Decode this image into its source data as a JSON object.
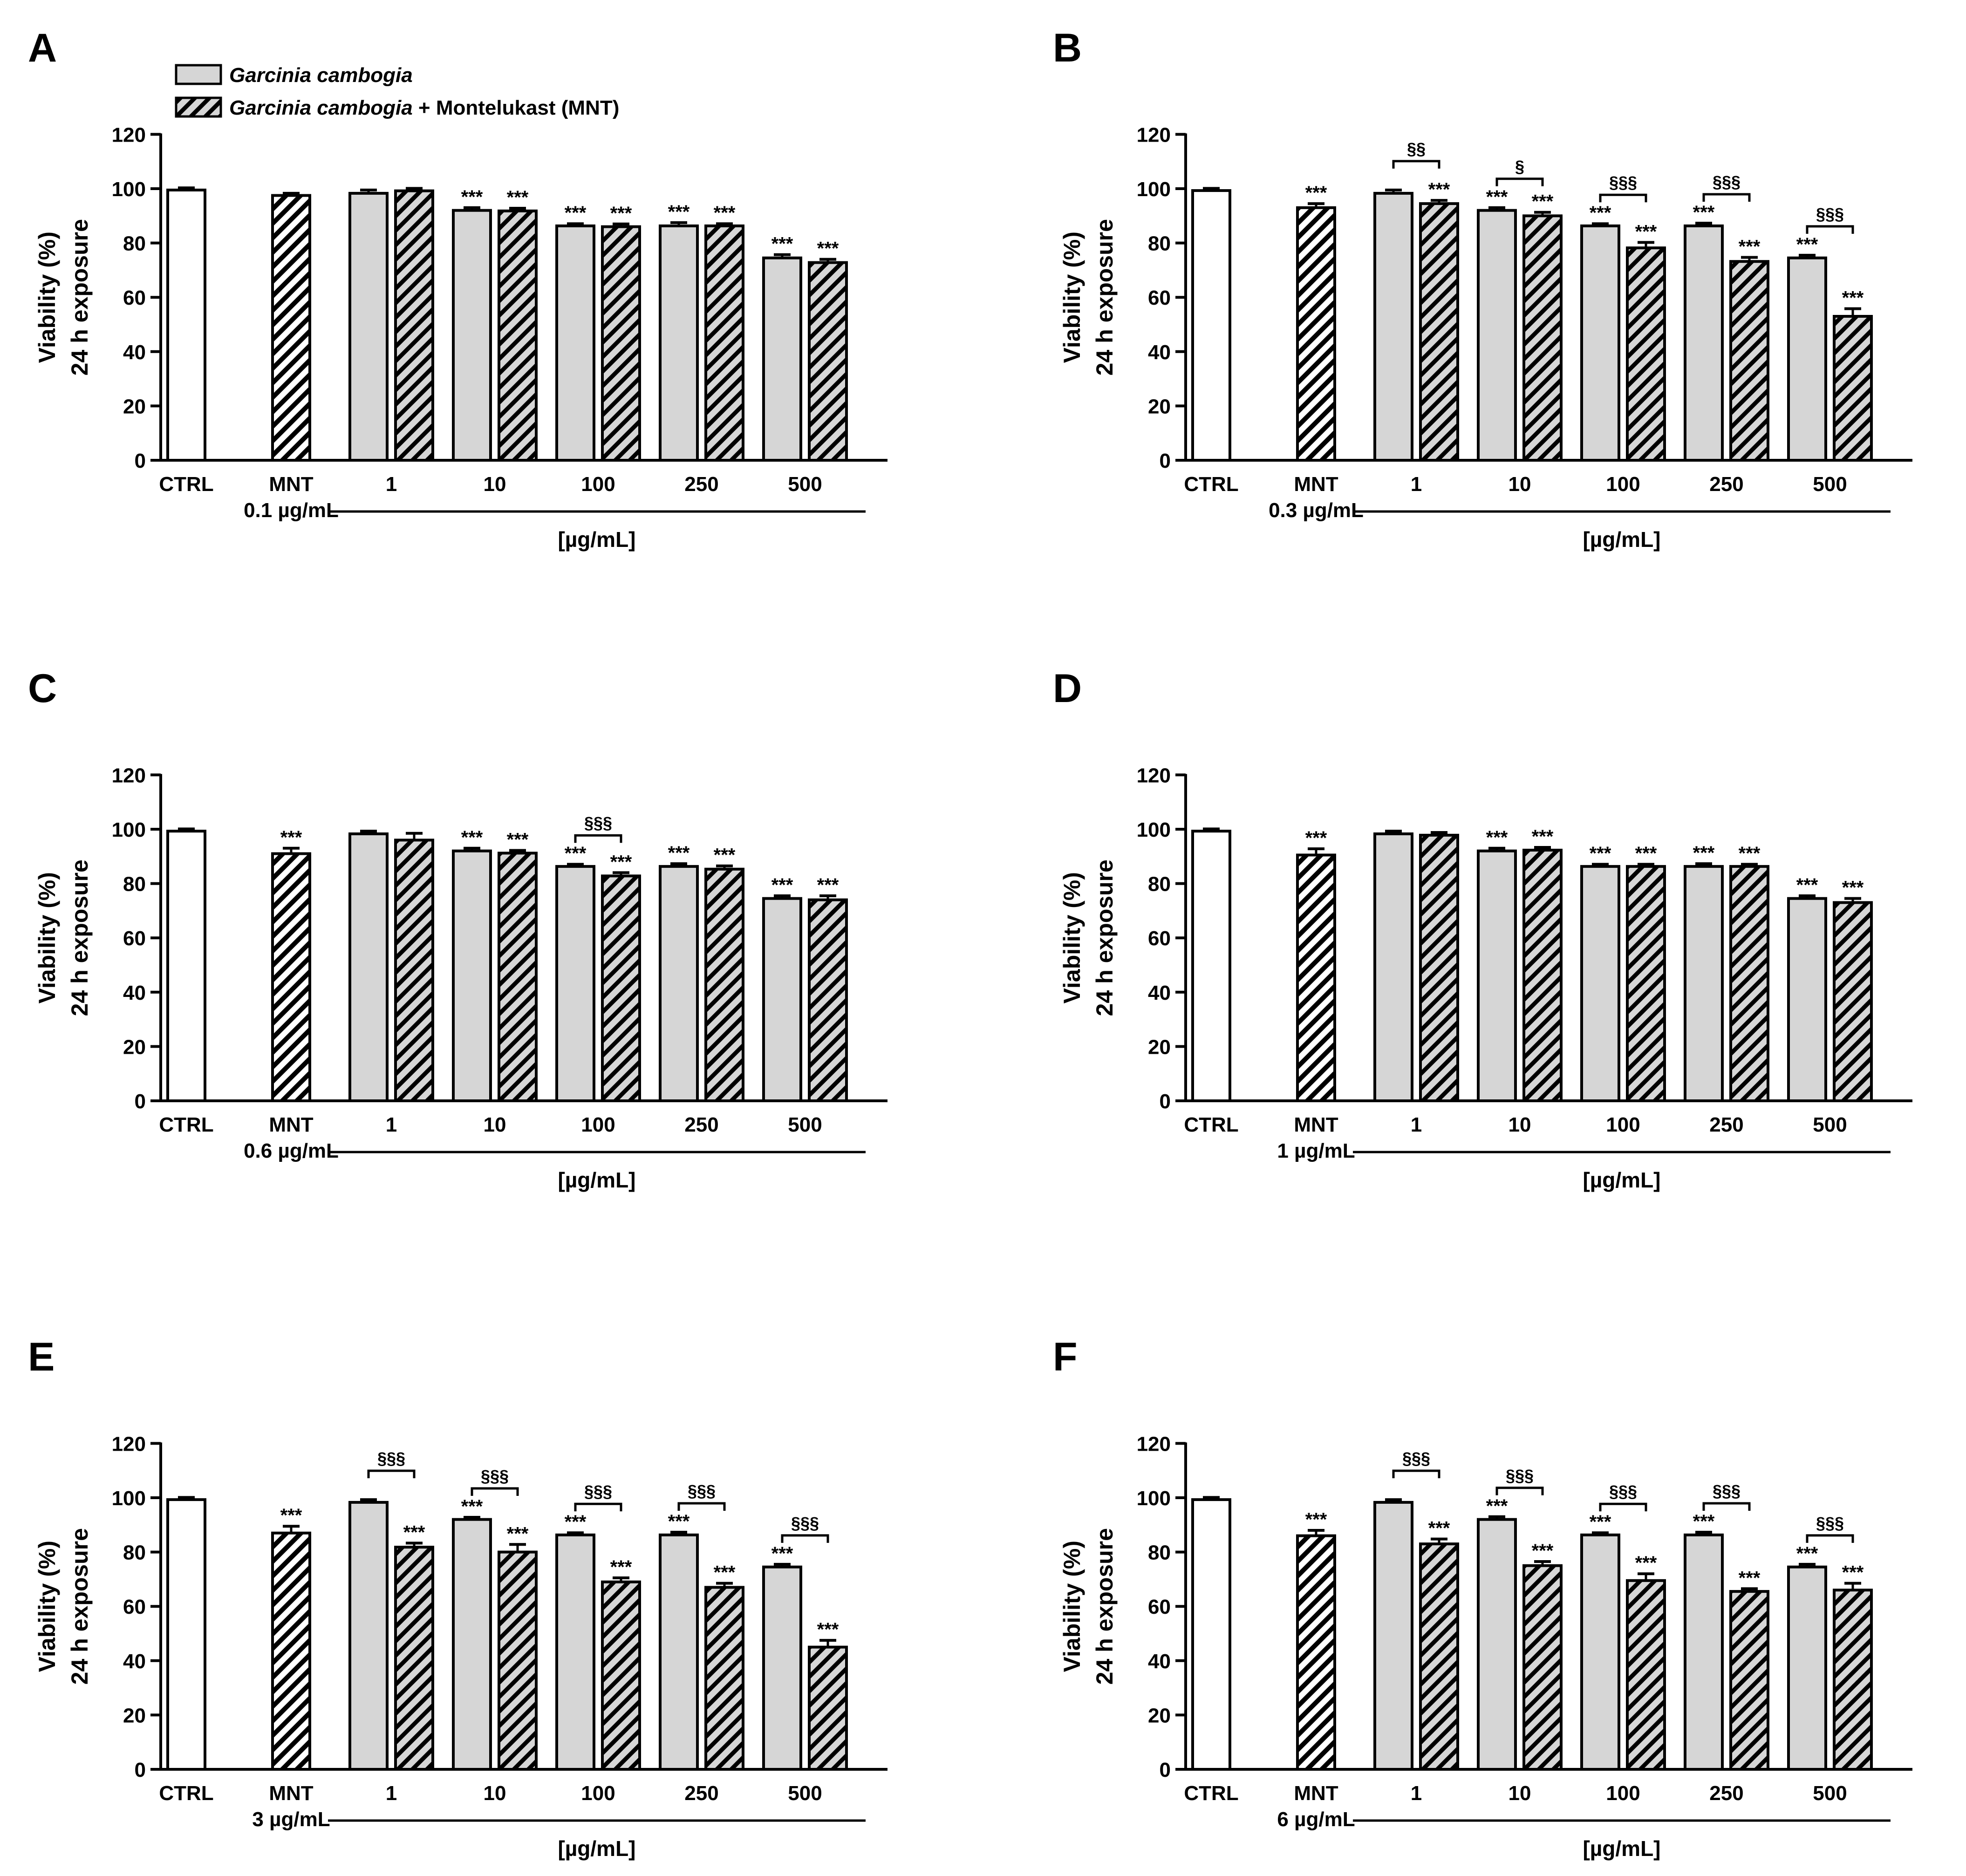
{
  "legend": {
    "item_gc": {
      "italic": "Garcinia cambogia",
      "plain": ""
    },
    "item_gcm": {
      "italic": "Garcinia cambogia",
      "plain": " + Montelukast (MNT)"
    }
  },
  "colors": {
    "gc_fill": "#d6d6d6",
    "ctrl_fill": "#ffffff",
    "stroke": "#000000",
    "hatch_bg": "#ffffff",
    "hatch_gc_bg": "#d6d6d6"
  },
  "chart_data": [
    {
      "type": "bar",
      "panel": "A",
      "ylabel": [
        "Viability (%)",
        "24 h exposure"
      ],
      "ylim": [
        0,
        120
      ],
      "yticks": [
        0,
        20,
        40,
        60,
        80,
        100,
        120
      ],
      "ctrl": {
        "label": "CTRL",
        "value": 99.5,
        "err": 0.8
      },
      "mnt": {
        "label": "MNT",
        "dose": "0.1 µg/mL",
        "value": 97.5,
        "err": 0.8,
        "star": ""
      },
      "group_label": "[µg/mL]",
      "categories": [
        "1",
        "10",
        "100",
        "250",
        "500"
      ],
      "series": [
        {
          "name": "Garcinia cambogia",
          "values": [
            98.3,
            92.0,
            86.3,
            86.3,
            74.5
          ],
          "err": [
            1.2,
            1.0,
            0.8,
            1.2,
            1.2
          ],
          "stars": [
            "",
            "***",
            "***",
            "***",
            "***"
          ]
        },
        {
          "name": "Garcinia cambogia + Montelukast (MNT)",
          "values": [
            99.2,
            91.8,
            86.0,
            86.3,
            72.8
          ],
          "err": [
            0.9,
            1.0,
            1.0,
            0.8,
            1.2
          ],
          "stars": [
            "",
            "***",
            "***",
            "***",
            "***"
          ]
        }
      ],
      "brackets": [
        "",
        "",
        "",
        "",
        ""
      ]
    },
    {
      "type": "bar",
      "panel": "B",
      "ylabel": [
        "Viability (%)",
        "24 h exposure"
      ],
      "ylim": [
        0,
        120
      ],
      "yticks": [
        0,
        20,
        40,
        60,
        80,
        100,
        120
      ],
      "ctrl": {
        "label": "CTRL",
        "value": 99.3,
        "err": 0.8
      },
      "mnt": {
        "label": "MNT",
        "dose": "0.3 µg/mL",
        "value": 93.0,
        "err": 1.5,
        "star": "***"
      },
      "group_label": "[µg/mL]",
      "categories": [
        "1",
        "10",
        "100",
        "250",
        "500"
      ],
      "series": [
        {
          "name": "Garcinia cambogia",
          "values": [
            98.3,
            92.0,
            86.3,
            86.3,
            74.5
          ],
          "err": [
            1.2,
            1.0,
            0.8,
            1.0,
            1.0
          ],
          "stars": [
            "",
            "***",
            "***",
            "***",
            "***"
          ]
        },
        {
          "name": "Garcinia cambogia + Montelukast (MNT)",
          "values": [
            94.5,
            90.0,
            78.2,
            73.2,
            53.0
          ],
          "err": [
            1.2,
            1.3,
            2.0,
            1.5,
            2.8
          ],
          "stars": [
            "***",
            "***",
            "***",
            "***",
            "***"
          ]
        }
      ],
      "brackets": [
        "§§",
        "§",
        "§§§",
        "§§§",
        "§§§"
      ]
    },
    {
      "type": "bar",
      "panel": "C",
      "ylabel": [
        "Viability (%)",
        "24 h exposure"
      ],
      "ylim": [
        0,
        120
      ],
      "yticks": [
        0,
        20,
        40,
        60,
        80,
        100,
        120
      ],
      "ctrl": {
        "label": "CTRL",
        "value": 99.3,
        "err": 0.8
      },
      "mnt": {
        "label": "MNT",
        "dose": "0.6 µg/mL",
        "value": 91.0,
        "err": 2.0,
        "star": "***"
      },
      "group_label": "[µg/mL]",
      "categories": [
        "1",
        "10",
        "100",
        "250",
        "500"
      ],
      "series": [
        {
          "name": "Garcinia cambogia",
          "values": [
            98.3,
            92.0,
            86.3,
            86.3,
            74.5
          ],
          "err": [
            1.0,
            1.0,
            0.8,
            1.0,
            1.0
          ],
          "stars": [
            "",
            "***",
            "***",
            "***",
            "***"
          ]
        },
        {
          "name": "Garcinia cambogia + Montelukast (MNT)",
          "values": [
            96.0,
            91.2,
            82.8,
            85.3,
            74.0
          ],
          "err": [
            2.5,
            1.0,
            1.2,
            1.2,
            1.5
          ],
          "stars": [
            "",
            "***",
            "***",
            "***",
            "***"
          ]
        }
      ],
      "brackets": [
        "",
        "",
        "§§§",
        "",
        ""
      ]
    },
    {
      "type": "bar",
      "panel": "D",
      "ylabel": [
        "Viability (%)",
        "24 h exposure"
      ],
      "ylim": [
        0,
        120
      ],
      "yticks": [
        0,
        20,
        40,
        60,
        80,
        100,
        120
      ],
      "ctrl": {
        "label": "CTRL",
        "value": 99.3,
        "err": 0.8
      },
      "mnt": {
        "label": "MNT",
        "dose": "1 µg/mL",
        "value": 90.5,
        "err": 2.3,
        "star": "***"
      },
      "group_label": "[µg/mL]",
      "categories": [
        "1",
        "10",
        "100",
        "250",
        "500"
      ],
      "series": [
        {
          "name": "Garcinia cambogia",
          "values": [
            98.3,
            92.0,
            86.3,
            86.3,
            74.5
          ],
          "err": [
            1.0,
            1.0,
            0.8,
            1.0,
            1.0
          ],
          "stars": [
            "",
            "***",
            "***",
            "***",
            "***"
          ]
        },
        {
          "name": "Garcinia cambogia + Montelukast (MNT)",
          "values": [
            97.8,
            92.3,
            86.3,
            86.3,
            73.0
          ],
          "err": [
            1.0,
            1.0,
            0.8,
            0.8,
            1.5
          ],
          "stars": [
            "",
            "***",
            "***",
            "***",
            "***"
          ]
        }
      ],
      "brackets": [
        "",
        "",
        "",
        "",
        ""
      ]
    },
    {
      "type": "bar",
      "panel": "E",
      "ylabel": [
        "Viability (%)",
        "24 h exposure"
      ],
      "ylim": [
        0,
        120
      ],
      "yticks": [
        0,
        20,
        40,
        60,
        80,
        100,
        120
      ],
      "ctrl": {
        "label": "CTRL",
        "value": 99.3,
        "err": 0.8
      },
      "mnt": {
        "label": "MNT",
        "dose": "3 µg/mL",
        "value": 87.0,
        "err": 2.5,
        "star": "***"
      },
      "group_label": "[µg/mL]",
      "categories": [
        "1",
        "10",
        "100",
        "250",
        "500"
      ],
      "series": [
        {
          "name": "Garcinia cambogia",
          "values": [
            98.3,
            92.0,
            86.3,
            86.3,
            74.5
          ],
          "err": [
            1.0,
            0.8,
            0.8,
            1.0,
            1.0
          ],
          "stars": [
            "",
            "***",
            "***",
            "***",
            "***"
          ]
        },
        {
          "name": "Garcinia cambogia + Montelukast (MNT)",
          "values": [
            81.8,
            80.0,
            69.0,
            67.0,
            45.0
          ],
          "err": [
            1.5,
            2.8,
            1.5,
            1.5,
            2.5
          ],
          "stars": [
            "***",
            "***",
            "***",
            "***",
            "***"
          ]
        }
      ],
      "brackets": [
        "§§§",
        "§§§",
        "§§§",
        "§§§",
        "§§§"
      ]
    },
    {
      "type": "bar",
      "panel": "F",
      "ylabel": [
        "Viability (%)",
        "24 h exposure"
      ],
      "ylim": [
        0,
        120
      ],
      "yticks": [
        0,
        20,
        40,
        60,
        80,
        100,
        120
      ],
      "ctrl": {
        "label": "CTRL",
        "value": 99.3,
        "err": 0.8
      },
      "mnt": {
        "label": "MNT",
        "dose": "6 µg/mL",
        "value": 86.0,
        "err": 2.0,
        "star": "***"
      },
      "group_label": "[µg/mL]",
      "categories": [
        "1",
        "10",
        "100",
        "250",
        "500"
      ],
      "series": [
        {
          "name": "Garcinia cambogia",
          "values": [
            98.3,
            92.0,
            86.3,
            86.3,
            74.5
          ],
          "err": [
            1.0,
            1.0,
            0.8,
            1.0,
            1.0
          ],
          "stars": [
            "",
            "***",
            "***",
            "***",
            "***"
          ]
        },
        {
          "name": "Garcinia cambogia + Montelukast (MNT)",
          "values": [
            83.0,
            75.0,
            69.5,
            65.5,
            66.0
          ],
          "err": [
            1.8,
            1.5,
            2.5,
            1.0,
            2.5
          ],
          "stars": [
            "***",
            "***",
            "***",
            "***",
            "***"
          ]
        }
      ],
      "brackets": [
        "§§§",
        "§§§",
        "§§§",
        "§§§",
        "§§§"
      ]
    }
  ]
}
